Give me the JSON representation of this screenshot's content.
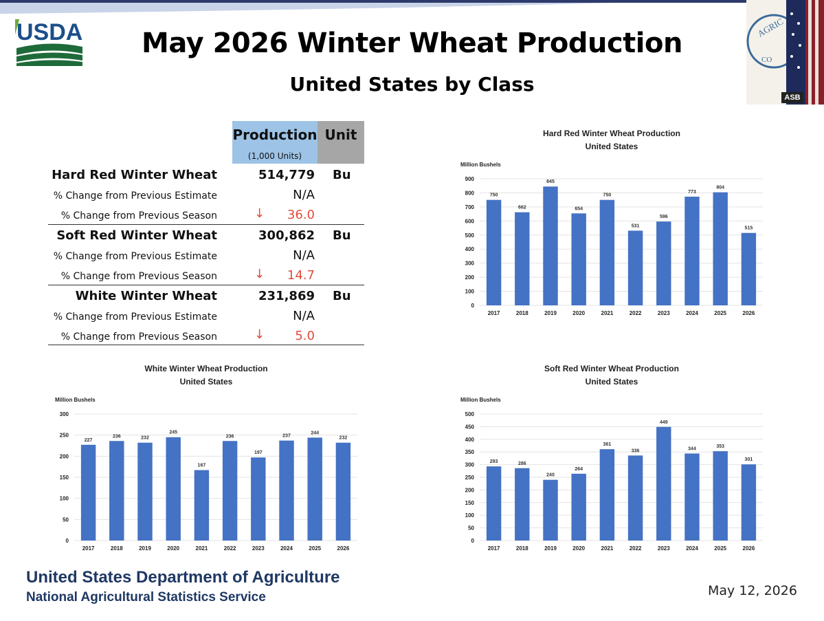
{
  "header": {
    "logo_text": "USDA",
    "title": "May 2026 Winter Wheat Production",
    "subtitle": "United States by Class",
    "badge": "ASB"
  },
  "colors": {
    "bar": "#4472c4",
    "negative": "#e14b3b",
    "production_header": "#9dc3e6",
    "unit_header": "#a6a6a6",
    "footer_text": "#1f3864"
  },
  "table": {
    "col_production": "Production",
    "col_production_sub": "(1,000 Units)",
    "col_unit": "Unit",
    "groups": [
      {
        "name": "Hard Red Winter Wheat",
        "value": "514,779",
        "unit": "Bu",
        "prev_estimate_label": "% Change from Previous Estimate",
        "prev_estimate": "N/A",
        "prev_season_label": "% Change from Previous Season",
        "prev_season": "36.0",
        "prev_season_arrow": "↓"
      },
      {
        "name": "Soft Red Winter Wheat",
        "value": "300,862",
        "unit": "Bu",
        "prev_estimate_label": "% Change from Previous Estimate",
        "prev_estimate": "N/A",
        "prev_season_label": "% Change from Previous Season",
        "prev_season": "14.7",
        "prev_season_arrow": "↓"
      },
      {
        "name": "White Winter Wheat",
        "value": "231,869",
        "unit": "Bu",
        "prev_estimate_label": "% Change from Previous Estimate",
        "prev_estimate": "N/A",
        "prev_season_label": "% Change from Previous Season",
        "prev_season": "5.0",
        "prev_season_arrow": "↓"
      }
    ]
  },
  "chart_data": [
    {
      "id": "hrw",
      "type": "bar",
      "title": "Hard Red Winter Wheat Production",
      "subtitle": "United States",
      "ylabel": "Million Bushels",
      "ylim": [
        0,
        900
      ],
      "yticks": [
        0,
        100,
        200,
        300,
        400,
        500,
        600,
        700,
        800,
        900
      ],
      "categories": [
        "2017",
        "2018",
        "2019",
        "2020",
        "2021",
        "2022",
        "2023",
        "2024",
        "2025",
        "2026"
      ],
      "values": [
        750,
        662,
        845,
        654,
        750,
        531,
        596,
        773,
        804,
        515
      ],
      "grid": true,
      "legend": "none"
    },
    {
      "id": "www",
      "type": "bar",
      "title": "White Winter Wheat Production",
      "subtitle": "United States",
      "ylabel": "Million Bushels",
      "ylim": [
        0,
        300
      ],
      "yticks": [
        0,
        50,
        100,
        150,
        200,
        250,
        300
      ],
      "categories": [
        "2017",
        "2018",
        "2019",
        "2020",
        "2021",
        "2022",
        "2023",
        "2024",
        "2025",
        "2026"
      ],
      "values": [
        227,
        236,
        232,
        245,
        167,
        236,
        197,
        237,
        244,
        232
      ],
      "grid": true,
      "legend": "none"
    },
    {
      "id": "srw",
      "type": "bar",
      "title": "Soft Red Winter Wheat Production",
      "subtitle": "United States",
      "ylabel": "Million Bushels",
      "ylim": [
        0,
        500
      ],
      "yticks": [
        0,
        50,
        100,
        150,
        200,
        250,
        300,
        350,
        400,
        450,
        500
      ],
      "categories": [
        "2017",
        "2018",
        "2019",
        "2020",
        "2021",
        "2022",
        "2023",
        "2024",
        "2025",
        "2026"
      ],
      "values": [
        293,
        286,
        240,
        264,
        361,
        336,
        449,
        344,
        353,
        301
      ],
      "grid": true,
      "legend": "none"
    }
  ],
  "footer": {
    "org": "United States Department of Agriculture",
    "agency": "National Agricultural Statistics Service",
    "date": "May 12, 2026"
  }
}
